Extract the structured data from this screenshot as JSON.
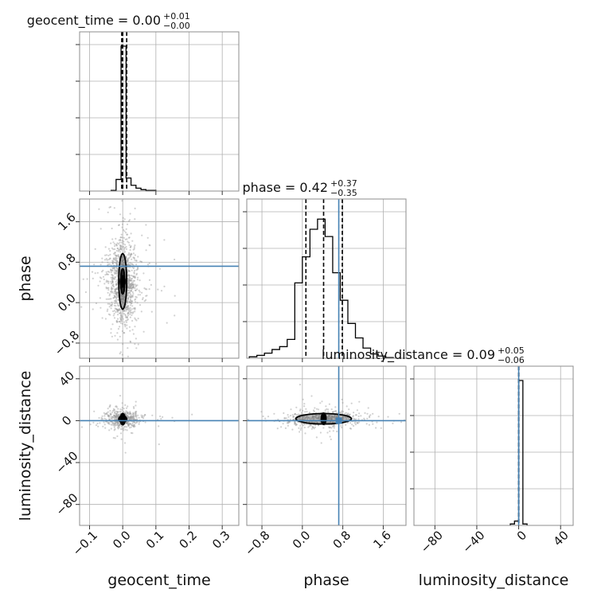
{
  "chart_data": {
    "type": "corner",
    "parameters": [
      "geocent_time",
      "phase",
      "luminosity_distance"
    ],
    "truth_color": "#4682b4",
    "axes": {
      "geocent_time": {
        "range": [
          -0.13,
          0.35
        ],
        "ticks": [
          -0.1,
          0.0,
          0.1,
          0.2,
          0.3
        ],
        "tick_labels": [
          "−0.1",
          "0.0",
          "0.1",
          "0.2",
          "0.3"
        ]
      },
      "phase": {
        "range": [
          -1.1,
          2.05
        ],
        "ticks": [
          -0.8,
          0.0,
          0.8,
          1.6
        ],
        "tick_labels": [
          "−0.8",
          "0.0",
          "0.8",
          "1.6"
        ]
      },
      "luminosity_distance": {
        "range": [
          -100,
          52
        ],
        "ticks": [
          -80,
          -40,
          0,
          40
        ],
        "tick_labels": [
          "−80",
          "−40",
          "0",
          "40"
        ]
      }
    },
    "marginals": [
      {
        "parameter": "geocent_time",
        "title": "geocent_time = 0.00",
        "title_plus": "+0.01",
        "title_minus": "−0.00",
        "quantiles": [
          -0.003,
          0.0,
          0.012
        ],
        "truth": null,
        "hist": [
          {
            "x0": -0.035,
            "x1": -0.02,
            "h": 0.005
          },
          {
            "x0": -0.02,
            "x1": -0.005,
            "h": 0.08
          },
          {
            "x0": -0.005,
            "x1": 0.003,
            "h": 1.0
          },
          {
            "x0": 0.003,
            "x1": 0.01,
            "h": 1.0
          },
          {
            "x0": 0.01,
            "x1": 0.025,
            "h": 0.09
          },
          {
            "x0": 0.025,
            "x1": 0.04,
            "h": 0.04
          },
          {
            "x0": 0.04,
            "x1": 0.055,
            "h": 0.02
          },
          {
            "x0": 0.055,
            "x1": 0.07,
            "h": 0.01
          },
          {
            "x0": 0.07,
            "x1": 0.1,
            "h": 0.005
          }
        ]
      },
      {
        "parameter": "phase",
        "title": "phase = 0.42",
        "title_plus": "+0.37",
        "title_minus": "−0.35",
        "quantiles": [
          0.07,
          0.42,
          0.79
        ],
        "truth": 0.72,
        "hist": [
          {
            "x0": -1.05,
            "x1": -0.9,
            "h": 0.01
          },
          {
            "x0": -0.9,
            "x1": -0.75,
            "h": 0.02
          },
          {
            "x0": -0.75,
            "x1": -0.6,
            "h": 0.035
          },
          {
            "x0": -0.6,
            "x1": -0.45,
            "h": 0.06
          },
          {
            "x0": -0.45,
            "x1": -0.3,
            "h": 0.08
          },
          {
            "x0": -0.3,
            "x1": -0.15,
            "h": 0.13
          },
          {
            "x0": -0.15,
            "x1": 0.0,
            "h": 0.52
          },
          {
            "x0": 0.0,
            "x1": 0.15,
            "h": 0.7
          },
          {
            "x0": 0.15,
            "x1": 0.3,
            "h": 0.89
          },
          {
            "x0": 0.3,
            "x1": 0.45,
            "h": 0.96
          },
          {
            "x0": 0.45,
            "x1": 0.6,
            "h": 0.84
          },
          {
            "x0": 0.6,
            "x1": 0.75,
            "h": 0.59
          },
          {
            "x0": 0.75,
            "x1": 0.9,
            "h": 0.4
          },
          {
            "x0": 0.9,
            "x1": 1.05,
            "h": 0.24
          },
          {
            "x0": 1.05,
            "x1": 1.2,
            "h": 0.14
          },
          {
            "x0": 1.2,
            "x1": 1.35,
            "h": 0.07
          },
          {
            "x0": 1.35,
            "x1": 1.5,
            "h": 0.03
          },
          {
            "x0": 1.5,
            "x1": 1.65,
            "h": 0.015
          },
          {
            "x0": 1.65,
            "x1": 1.8,
            "h": 0.005
          }
        ]
      },
      {
        "parameter": "luminosity_distance",
        "title": "luminosity_distance = 0.09",
        "title_plus": "+0.05",
        "title_minus": "−0.06",
        "quantiles": [
          0.03,
          0.09,
          0.14
        ],
        "truth": 0.0,
        "hist": [
          {
            "x0": -8,
            "x1": -4,
            "h": 0.01
          },
          {
            "x0": -4,
            "x1": 0,
            "h": 0.03
          },
          {
            "x0": 0,
            "x1": 4,
            "h": 1.0
          },
          {
            "x0": 4,
            "x1": 8,
            "h": 0.01
          }
        ]
      }
    ],
    "joints": [
      {
        "x_param": "geocent_time",
        "y_param": "phase",
        "truth_x": null,
        "truth_y": 0.72,
        "center": [
          0.0,
          0.42
        ],
        "spread": [
          0.022,
          0.42
        ],
        "contours": [
          {
            "rx": 0.012,
            "ry": 0.55
          },
          {
            "rx": 0.006,
            "ry": 0.25
          }
        ],
        "n_points": 1100
      },
      {
        "x_param": "geocent_time",
        "y_param": "luminosity_distance",
        "truth_x": null,
        "truth_y": 0.0,
        "center": [
          0.0,
          1.5
        ],
        "spread": [
          0.025,
          4.0
        ],
        "contours": [
          {
            "rx": 0.012,
            "ry": 3.0
          }
        ],
        "n_points": 500
      },
      {
        "x_param": "phase",
        "y_param": "luminosity_distance",
        "truth_x": 0.72,
        "truth_y": 0.0,
        "center": [
          0.42,
          1.8
        ],
        "spread": [
          0.4,
          4.0
        ],
        "contours": [
          {
            "rx": 0.55,
            "ry": 5.0
          }
        ],
        "n_points": 500
      }
    ]
  }
}
